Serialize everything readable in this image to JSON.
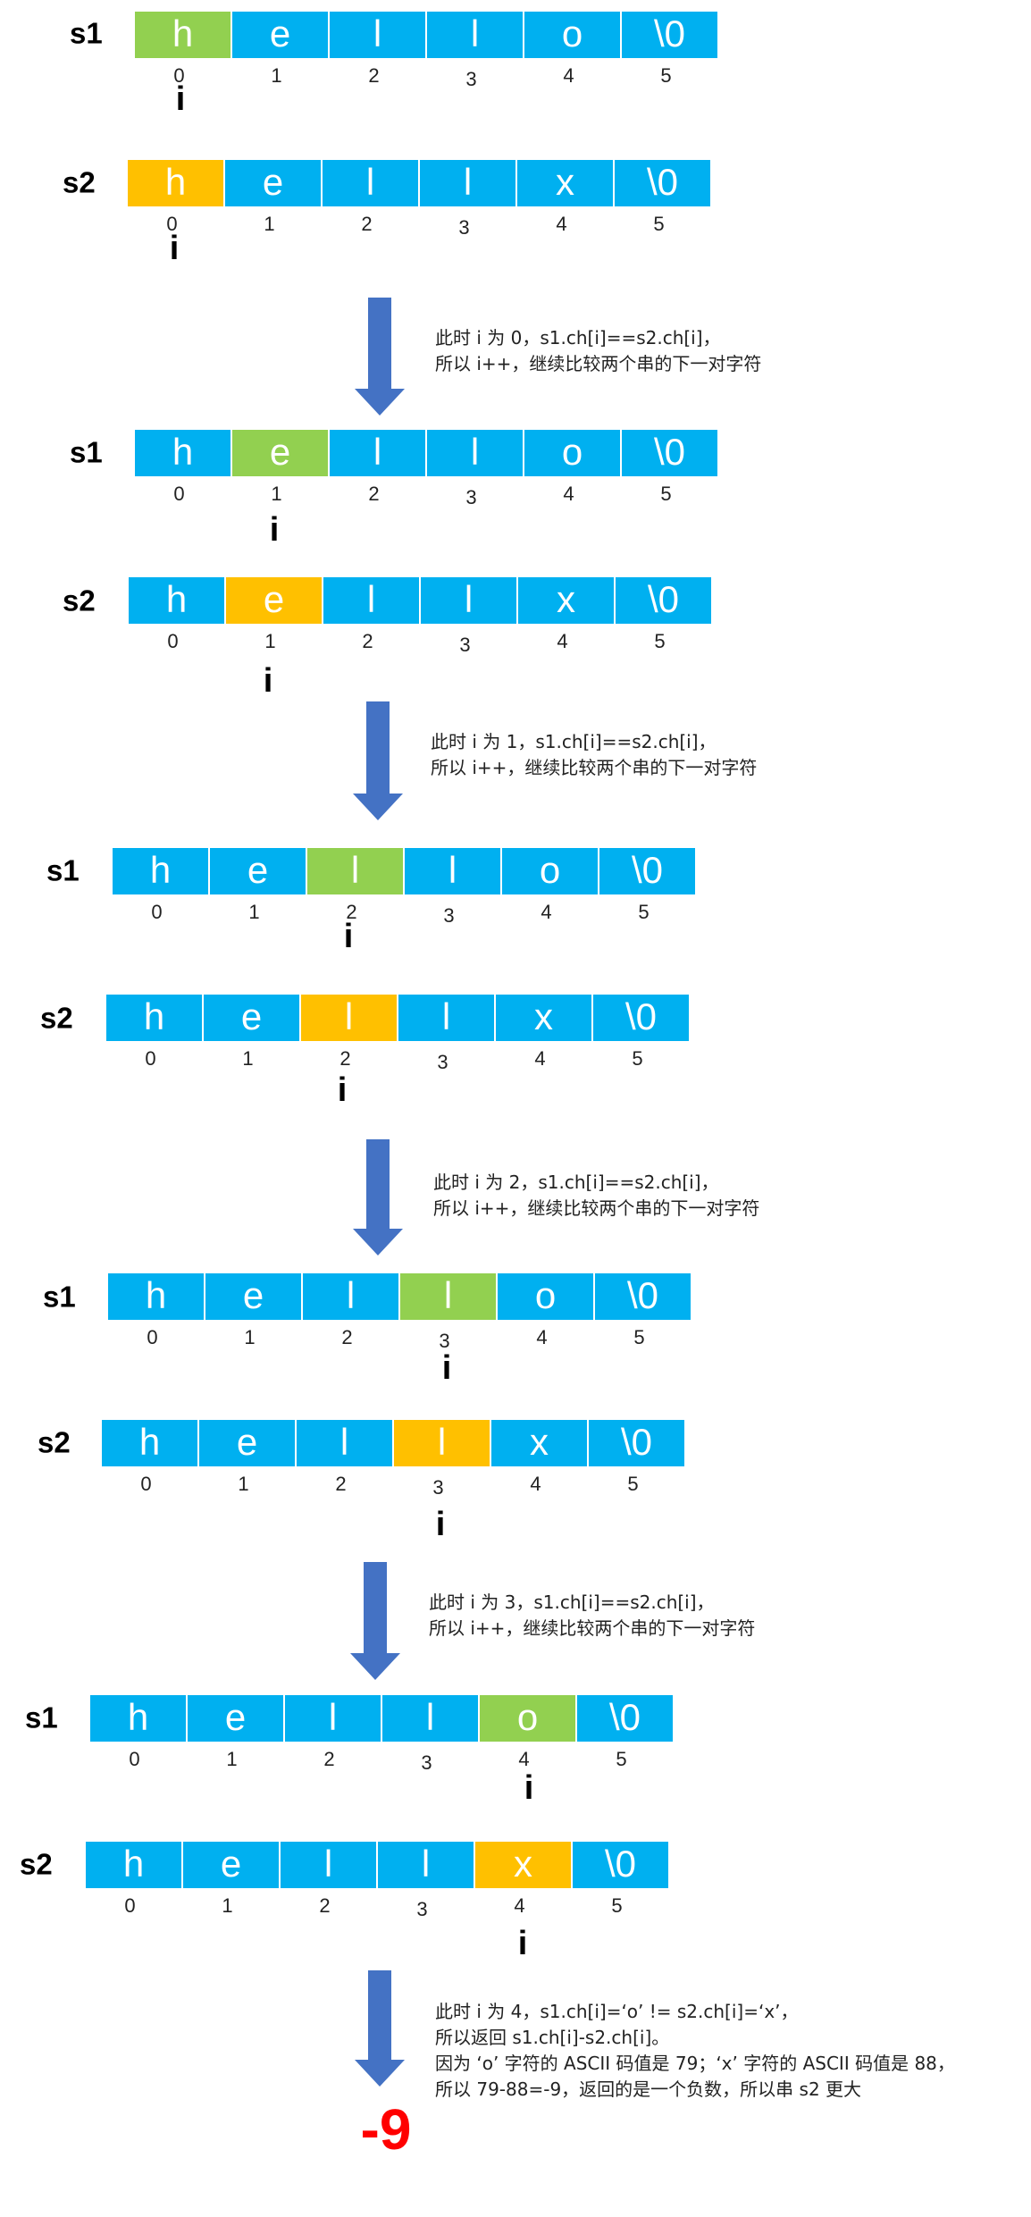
{
  "chars_s1": [
    "h",
    "e",
    "l",
    "l",
    "o",
    "\\0"
  ],
  "chars_s2": [
    "h",
    "e",
    "l",
    "l",
    "x",
    "\\0"
  ],
  "indices": [
    "0",
    "1",
    "2",
    "3",
    "4",
    "5"
  ],
  "label_s1": "s1",
  "label_s2": "s2",
  "pointer_label": "i",
  "colors": {
    "cell": "#00B0F0",
    "match_s1": "#92D050",
    "match_s2": "#FFC000",
    "arrow": "#4472C4",
    "result": "#FF0000"
  },
  "steps": [
    {
      "active": 0
    },
    {
      "active": 1
    },
    {
      "active": 2
    },
    {
      "active": 3
    },
    {
      "active": 4
    }
  ],
  "notes": [
    [
      "此时 i 为 0，s1.ch[i]==s2.ch[i]，",
      "所以 i++，继续比较两个串的下一对字符"
    ],
    [
      "此时 i 为 1，s1.ch[i]==s2.ch[i]，",
      "所以 i++，继续比较两个串的下一对字符"
    ],
    [
      "此时 i 为 2，s1.ch[i]==s2.ch[i]，",
      "所以 i++，继续比较两个串的下一对字符"
    ],
    [
      "此时 i 为 3，s1.ch[i]==s2.ch[i]，",
      "所以 i++，继续比较两个串的下一对字符"
    ],
    [
      "此时 i 为 4，s1.ch[i]=‘o’ != s2.ch[i]=‘x’，",
      "所以返回 s1.ch[i]-s2.ch[i]。",
      "因为 ‘o’ 字符的 ASCII 码值是 79；‘x’ 字符的 ASCII 码值是 88，",
      "所以 79-88=-9，返回的是一个负数，所以串 s2 更大"
    ]
  ],
  "result": "-9"
}
